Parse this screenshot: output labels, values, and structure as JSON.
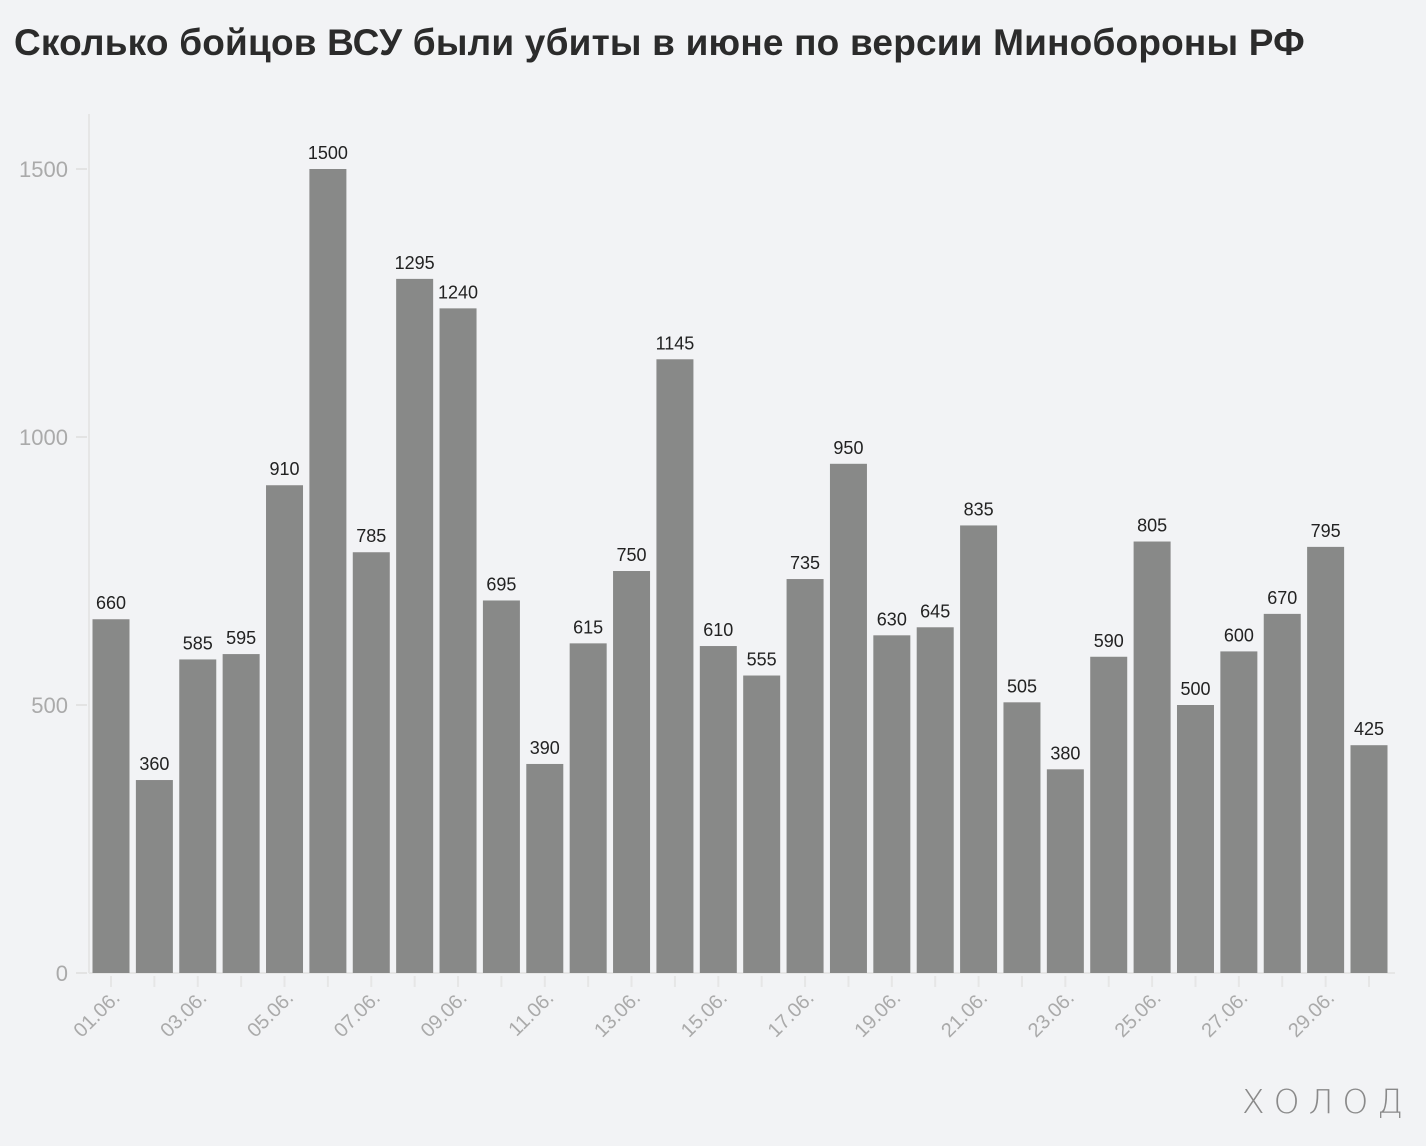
{
  "logo": "ХОЛОД",
  "chart_data": {
    "type": "bar",
    "title": "Сколько бойцов ВСУ были убиты в июне по версии Минобороны РФ",
    "xlabel": "",
    "ylabel": "",
    "ylim": [
      0,
      1600
    ],
    "yticks": [
      0,
      500,
      1000,
      1500
    ],
    "grid": false,
    "bar_color": "#888988",
    "categories": [
      "01.06.",
      "02.06.",
      "03.06.",
      "04.06.",
      "05.06.",
      "06.06.",
      "07.06.",
      "08.06.",
      "09.06.",
      "10.06.",
      "11.06.",
      "12.06.",
      "13.06.",
      "14.06.",
      "15.06.",
      "16.06.",
      "17.06.",
      "18.06.",
      "19.06.",
      "20.06.",
      "21.06.",
      "22.06.",
      "23.06.",
      "24.06.",
      "25.06.",
      "26.06.",
      "27.06.",
      "28.06.",
      "29.06.",
      "30.06."
    ],
    "shown_tick_labels": [
      "01.06.",
      "03.06.",
      "05.06.",
      "07.06.",
      "09.06.",
      "11.06.",
      "13.06.",
      "15.06.",
      "17.06.",
      "19.06.",
      "21.06.",
      "23.06.",
      "25.06.",
      "27.06.",
      "29.06."
    ],
    "values": [
      660,
      360,
      585,
      595,
      910,
      1500,
      785,
      1295,
      1240,
      695,
      390,
      615,
      750,
      1145,
      610,
      555,
      735,
      950,
      630,
      645,
      835,
      505,
      380,
      590,
      805,
      500,
      600,
      670,
      795,
      425
    ]
  }
}
